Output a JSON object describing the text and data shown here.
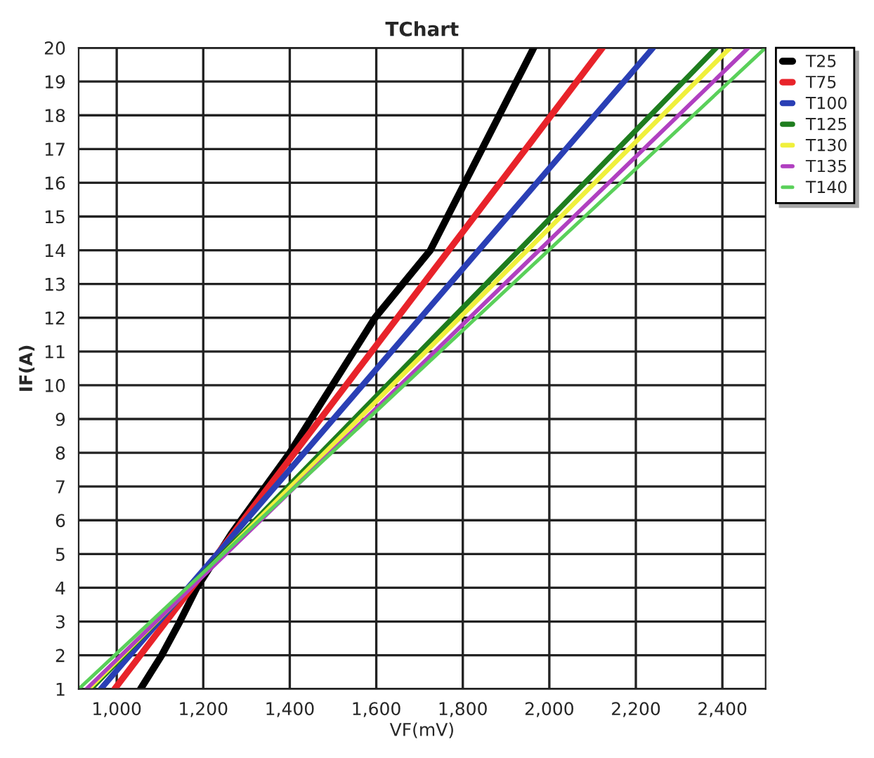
{
  "chart_data": {
    "type": "line",
    "title": "TChart",
    "xlabel": "VF(mV)",
    "ylabel": "IF(A)",
    "xlim": [
      912,
      2500
    ],
    "ylim": [
      1,
      20
    ],
    "xticks": [
      {
        "value": 1000,
        "label": "1,000"
      },
      {
        "value": 1200,
        "label": "1,200"
      },
      {
        "value": 1400,
        "label": "1,400"
      },
      {
        "value": 1600,
        "label": "1,600"
      },
      {
        "value": 1800,
        "label": "1,800"
      },
      {
        "value": 2000,
        "label": "2,000"
      },
      {
        "value": 2200,
        "label": "2,200"
      },
      {
        "value": 2400,
        "label": "2,400"
      }
    ],
    "yticks": [
      1,
      2,
      3,
      4,
      5,
      6,
      7,
      8,
      9,
      10,
      11,
      12,
      13,
      14,
      15,
      16,
      17,
      18,
      19,
      20
    ],
    "grid": true,
    "legend": "right",
    "marker": "none",
    "line_style": "solid",
    "series": [
      {
        "name": "T25",
        "color": "#000000",
        "x": [
          1055,
          1104,
          1146,
          1185,
          1265,
          1400,
          1597,
          1725,
          1964
        ],
        "values": [
          1,
          2,
          3,
          4,
          5.6,
          8,
          12,
          14,
          20
        ]
      },
      {
        "name": "T75",
        "color": "#e8232a",
        "x": [
          995,
          1233,
          1530,
          1827,
          2123
        ],
        "values": [
          1,
          5,
          10,
          15,
          20
        ]
      },
      {
        "name": "T100",
        "color": "#2a3fb5",
        "x": [
          963,
          1232,
          1568,
          1904,
          2240
        ],
        "values": [
          1,
          5,
          10,
          15,
          20
        ]
      },
      {
        "name": "T125",
        "color": "#1e7d1e",
        "x": [
          940,
          1244,
          1625,
          2006,
          2386
        ],
        "values": [
          1,
          5,
          10,
          15,
          20
        ]
      },
      {
        "name": "T130",
        "color": "#f0f03c",
        "x": [
          935,
          1247,
          1637,
          2027,
          2418
        ],
        "values": [
          1,
          5,
          10,
          15,
          20
        ]
      },
      {
        "name": "T135",
        "color": "#b040c0",
        "x": [
          930,
          1252,
          1655,
          2057,
          2460
        ],
        "values": [
          1,
          5,
          10,
          15,
          20
        ]
      },
      {
        "name": "T140",
        "color": "#5ad05a",
        "x": [
          912,
          1246,
          1664,
          2082,
          2500
        ],
        "values": [
          1,
          5,
          10,
          15,
          20
        ]
      }
    ]
  }
}
